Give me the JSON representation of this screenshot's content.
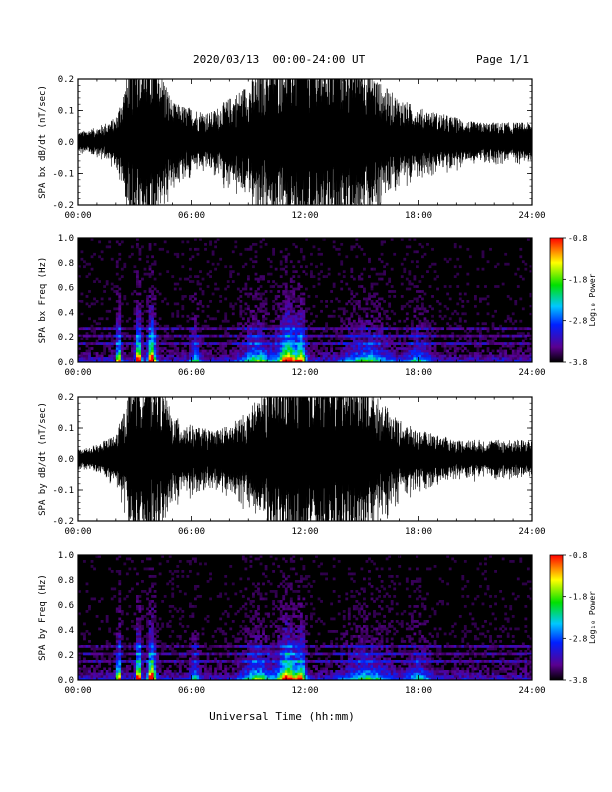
{
  "header": {
    "title": "2020/03/13  00:00-24:00 UT",
    "page": "Page 1/1"
  },
  "x_axis": {
    "label": "Universal Time (hh:mm)",
    "tick_labels": [
      "00:00",
      "06:00",
      "12:00",
      "18:00",
      "24:00"
    ]
  },
  "colorbar": {
    "label": "Log₁₀ Power",
    "tick_labels": [
      "-0.8",
      "-1.8",
      "-2.8",
      "-3.8"
    ],
    "range": [
      -3.8,
      -0.8
    ],
    "colormap": "rainbow (black-purple-blue-cyan-green-yellow-red)"
  },
  "chart_data": [
    {
      "type": "line",
      "ylabel": "SPA bx dB/dt (nT/sec)",
      "xlim": [
        0,
        24
      ],
      "ylim": [
        -0.2,
        0.2
      ],
      "yticks": [
        "-0.2",
        "-0.1",
        "0.0",
        "0.1",
        "0.2"
      ],
      "series": [
        {
          "x_hours": [
            0,
            1,
            2,
            2.5,
            3,
            3.5,
            4,
            5,
            6,
            7,
            8,
            9,
            10,
            11,
            12,
            13,
            14,
            15,
            16,
            17,
            18,
            19,
            20,
            21,
            22,
            23,
            24
          ],
          "envelope": [
            0.02,
            0.03,
            0.05,
            0.12,
            0.2,
            0.2,
            0.2,
            0.08,
            0.07,
            0.06,
            0.09,
            0.12,
            0.17,
            0.2,
            0.2,
            0.2,
            0.2,
            0.18,
            0.12,
            0.09,
            0.07,
            0.06,
            0.05,
            0.04,
            0.04,
            0.04,
            0.04
          ]
        }
      ]
    },
    {
      "type": "heatmap",
      "ylabel": "SPA bx Freq (Hz)",
      "xlim": [
        0,
        24
      ],
      "ylim": [
        0.0,
        1.0
      ],
      "yticks": [
        "0.0",
        "0.2",
        "0.4",
        "0.6",
        "0.8",
        "1.0"
      ]
    },
    {
      "type": "line",
      "ylabel": "SPA by dB/dt (nT/sec)",
      "xlim": [
        0,
        24
      ],
      "ylim": [
        -0.2,
        0.2
      ],
      "yticks": [
        "-0.2",
        "-0.1",
        "0.0",
        "0.1",
        "0.2"
      ],
      "series": [
        {
          "x_hours": [
            0,
            1,
            2,
            2.5,
            3,
            3.5,
            4,
            5,
            6,
            7,
            8,
            9,
            10,
            11,
            12,
            13,
            14,
            15,
            16,
            17,
            18,
            19,
            20,
            21,
            22,
            23,
            24
          ],
          "envelope": [
            0.02,
            0.03,
            0.05,
            0.11,
            0.2,
            0.2,
            0.2,
            0.09,
            0.07,
            0.06,
            0.07,
            0.1,
            0.15,
            0.2,
            0.2,
            0.2,
            0.2,
            0.17,
            0.12,
            0.08,
            0.06,
            0.05,
            0.04,
            0.04,
            0.04,
            0.04,
            0.04
          ]
        }
      ]
    },
    {
      "type": "heatmap",
      "ylabel": "SPA by Freq (Hz)",
      "xlim": [
        0,
        24
      ],
      "ylim": [
        0.0,
        1.0
      ],
      "yticks": [
        "0.0",
        "0.2",
        "0.4",
        "0.6",
        "0.8",
        "1.0"
      ]
    }
  ]
}
